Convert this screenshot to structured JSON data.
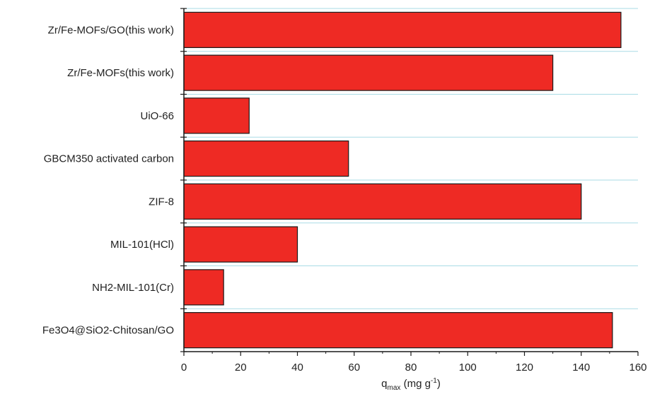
{
  "chart_data": {
    "type": "bar",
    "orientation": "horizontal",
    "categories": [
      "Zr/Fe-MOFs/GO(this work)",
      "Zr/Fe-MOFs(this work)",
      "UiO-66",
      "GBCM350 activated carbon",
      "ZIF-8",
      "MIL-101(HCl)",
      "NH2-MIL-101(Cr)",
      "Fe3O4@SiO2-Chitosan/GO"
    ],
    "values": [
      154,
      130,
      23,
      58,
      140,
      40,
      14,
      151
    ],
    "xlabel_main": "q",
    "xlabel_sub": "max",
    "xlabel_unit": " (mg g",
    "xlabel_sup": "-1",
    "xlabel_close": ")",
    "xlim": [
      0,
      160
    ],
    "xticks": [
      0,
      20,
      40,
      60,
      80,
      100,
      120,
      140,
      160
    ],
    "grid": true,
    "legend": "none",
    "colors": {
      "bar": "#ee2a24",
      "bar_edge": "#1a1a1a",
      "grid": "#a9dbe6",
      "axis": "#1a1a1a"
    }
  }
}
